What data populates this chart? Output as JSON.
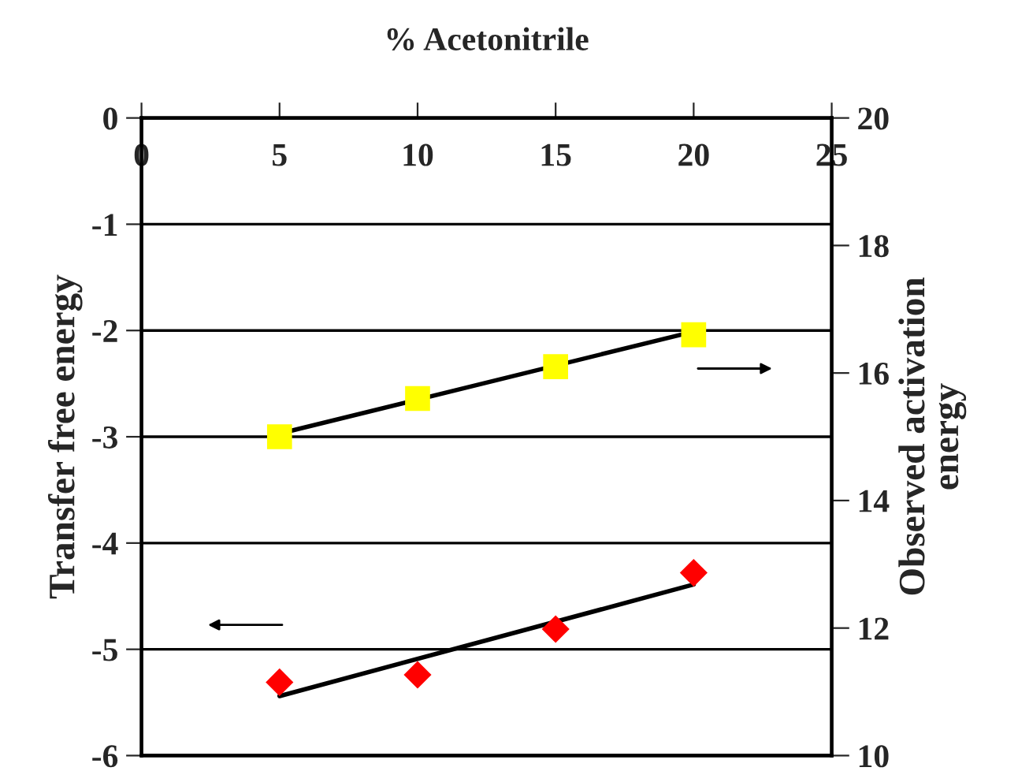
{
  "chart_data": {
    "type": "scatter",
    "xlabel": "% Acetonitrile",
    "ylabel": "Transfer free energy",
    "y2label": "Observed activation\nenergy",
    "xlim": [
      0,
      25
    ],
    "xticks": [
      0,
      5,
      10,
      15,
      20,
      25
    ],
    "ylim": [
      -6,
      0
    ],
    "yticks": [
      -6,
      -5,
      -4,
      -3,
      -2,
      -1,
      0
    ],
    "y2lim": [
      10,
      20
    ],
    "y2ticks": [
      10,
      12,
      14,
      16,
      18,
      20
    ],
    "grid": "y",
    "legend": false,
    "series": [
      {
        "x": [
          5,
          10,
          15,
          20
        ],
        "values": [
          15.0,
          15.6,
          16.1,
          16.6
        ],
        "color": "#ffff00",
        "marker": "square",
        "axis": "y2"
      },
      {
        "type": "line",
        "x": [
          5,
          20
        ],
        "values": [
          15.05,
          16.65
        ],
        "color": "#000000",
        "marker": "none",
        "axis": "y2"
      },
      {
        "x": [
          5,
          10,
          15,
          20
        ],
        "values": [
          -5.31,
          -5.24,
          -4.81,
          -4.28
        ],
        "color": "#ff0000",
        "marker": "diamond",
        "axis": "y"
      },
      {
        "type": "line",
        "x": [
          5,
          20
        ],
        "values": [
          -5.44,
          -4.39
        ],
        "color": "#000000",
        "marker": "none",
        "axis": "y"
      }
    ]
  }
}
